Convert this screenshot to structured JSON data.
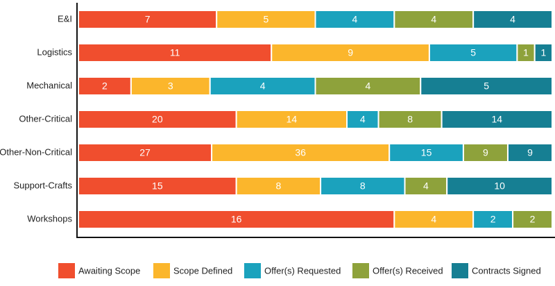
{
  "chart_data": {
    "type": "bar",
    "orientation": "horizontal",
    "stacking": "percent",
    "categories": [
      "E&I",
      "Logistics",
      "Mechanical",
      "Other-Critical",
      "Other-Non-Critical",
      "Support-Crafts",
      "Workshops"
    ],
    "series": [
      {
        "name": "Awaiting Scope",
        "color": "#f04e2e",
        "values": [
          7,
          11,
          2,
          20,
          27,
          15,
          16
        ]
      },
      {
        "name": "Scope Defined",
        "color": "#fbb62c",
        "values": [
          5,
          9,
          3,
          14,
          36,
          8,
          4
        ]
      },
      {
        "name": "Offer(s) Requested",
        "color": "#1ba2bd",
        "values": [
          4,
          5,
          4,
          4,
          15,
          8,
          2
        ]
      },
      {
        "name": "Offer(s) Received",
        "color": "#8ea23b",
        "values": [
          4,
          1,
          4,
          8,
          9,
          4,
          2
        ]
      },
      {
        "name": "Contracts Signed",
        "color": "#167f93",
        "values": [
          4,
          1,
          5,
          14,
          9,
          10,
          null
        ]
      }
    ],
    "legend": "bottom"
  }
}
